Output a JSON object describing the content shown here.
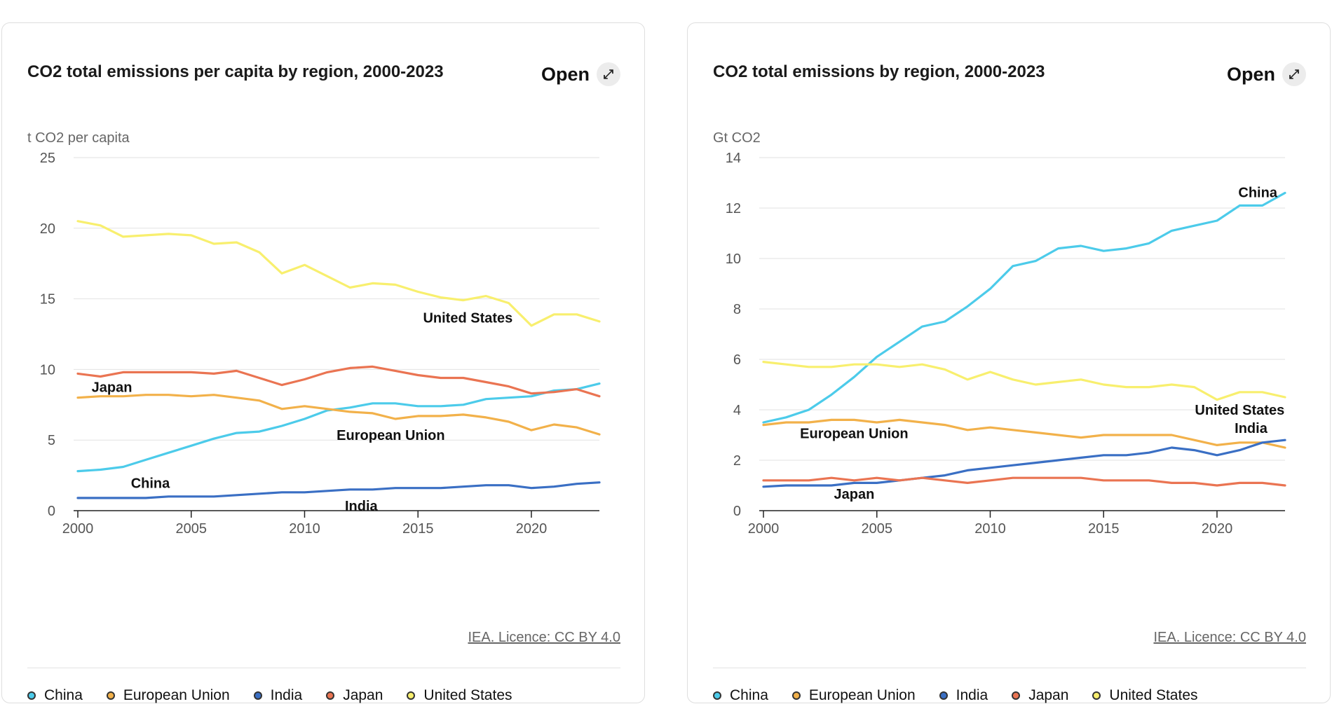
{
  "colors": {
    "China": "#4ccbea",
    "European Union": "#f2b14a",
    "India": "#3a6fc4",
    "Japan": "#ea7452",
    "United States": "#f8ef6e"
  },
  "open_icon": "expand-arrow-icon",
  "chart_data": [
    {
      "type": "line",
      "title": "CO2 total emissions per capita by region, 2000-2023",
      "ylabel": "t CO2 per capita",
      "xlabel": "",
      "open_label": "Open",
      "licence": "IEA. Licence: CC BY 4.0",
      "x": [
        2000,
        2001,
        2002,
        2003,
        2004,
        2005,
        2006,
        2007,
        2008,
        2009,
        2010,
        2011,
        2012,
        2013,
        2014,
        2015,
        2016,
        2017,
        2018,
        2019,
        2020,
        2021,
        2022,
        2023
      ],
      "xlim": [
        2000,
        2023
      ],
      "ylim": [
        0,
        25
      ],
      "yticks": [
        0,
        5,
        10,
        15,
        20,
        25
      ],
      "xticks": [
        2000,
        2005,
        2010,
        2015,
        2020
      ],
      "series": [
        {
          "name": "China",
          "label": "China",
          "values": [
            2.8,
            2.9,
            3.1,
            3.6,
            4.1,
            4.6,
            5.1,
            5.5,
            5.6,
            6.0,
            6.5,
            7.1,
            7.3,
            7.6,
            7.6,
            7.4,
            7.4,
            7.5,
            7.9,
            8.0,
            8.1,
            8.5,
            8.6,
            9.0
          ]
        },
        {
          "name": "European Union",
          "label": "European Union",
          "values": [
            8.0,
            8.1,
            8.1,
            8.2,
            8.2,
            8.1,
            8.2,
            8.0,
            7.8,
            7.2,
            7.4,
            7.2,
            7.0,
            6.9,
            6.5,
            6.7,
            6.7,
            6.8,
            6.6,
            6.3,
            5.7,
            6.1,
            5.9,
            5.4
          ]
        },
        {
          "name": "India",
          "label": "India",
          "values": [
            0.9,
            0.9,
            0.9,
            0.9,
            1.0,
            1.0,
            1.0,
            1.1,
            1.2,
            1.3,
            1.3,
            1.4,
            1.5,
            1.5,
            1.6,
            1.6,
            1.6,
            1.7,
            1.8,
            1.8,
            1.6,
            1.7,
            1.9,
            2.0
          ]
        },
        {
          "name": "Japan",
          "label": "Japan",
          "values": [
            9.7,
            9.5,
            9.8,
            9.8,
            9.8,
            9.8,
            9.7,
            9.9,
            9.4,
            8.9,
            9.3,
            9.8,
            10.1,
            10.2,
            9.9,
            9.6,
            9.4,
            9.4,
            9.1,
            8.8,
            8.3,
            8.4,
            8.6,
            8.1
          ]
        },
        {
          "name": "United States",
          "label": "United States",
          "values": [
            20.5,
            20.2,
            19.4,
            19.5,
            19.6,
            19.5,
            18.9,
            19.0,
            18.3,
            16.8,
            17.4,
            16.6,
            15.8,
            16.1,
            16.0,
            15.5,
            15.1,
            14.9,
            15.2,
            14.7,
            13.1,
            13.9,
            13.9,
            13.4
          ]
        }
      ]
    },
    {
      "type": "line",
      "title": "CO2 total emissions by region, 2000-2023",
      "ylabel": "Gt CO2",
      "xlabel": "",
      "open_label": "Open",
      "licence": "IEA. Licence: CC BY 4.0",
      "x": [
        2000,
        2001,
        2002,
        2003,
        2004,
        2005,
        2006,
        2007,
        2008,
        2009,
        2010,
        2011,
        2012,
        2013,
        2014,
        2015,
        2016,
        2017,
        2018,
        2019,
        2020,
        2021,
        2022,
        2023
      ],
      "xlim": [
        2000,
        2023
      ],
      "ylim": [
        0,
        14
      ],
      "yticks": [
        0,
        2,
        4,
        6,
        8,
        10,
        12,
        14
      ],
      "xticks": [
        2000,
        2005,
        2010,
        2015,
        2020
      ],
      "series": [
        {
          "name": "China",
          "label": "China",
          "values": [
            3.5,
            3.7,
            4.0,
            4.6,
            5.3,
            6.1,
            6.7,
            7.3,
            7.5,
            8.1,
            8.8,
            9.7,
            9.9,
            10.4,
            10.5,
            10.3,
            10.4,
            10.6,
            11.1,
            11.3,
            11.5,
            12.1,
            12.1,
            12.6
          ]
        },
        {
          "name": "European Union",
          "label": "European Union",
          "values": [
            3.4,
            3.5,
            3.5,
            3.6,
            3.6,
            3.5,
            3.6,
            3.5,
            3.4,
            3.2,
            3.3,
            3.2,
            3.1,
            3.0,
            2.9,
            3.0,
            3.0,
            3.0,
            3.0,
            2.8,
            2.6,
            2.7,
            2.7,
            2.5
          ]
        },
        {
          "name": "India",
          "label": "India",
          "values": [
            0.95,
            1.0,
            1.0,
            1.0,
            1.1,
            1.1,
            1.2,
            1.3,
            1.4,
            1.6,
            1.7,
            1.8,
            1.9,
            2.0,
            2.1,
            2.2,
            2.2,
            2.3,
            2.5,
            2.4,
            2.2,
            2.4,
            2.7,
            2.8
          ]
        },
        {
          "name": "Japan",
          "label": "Japan",
          "values": [
            1.2,
            1.2,
            1.2,
            1.3,
            1.2,
            1.3,
            1.2,
            1.3,
            1.2,
            1.1,
            1.2,
            1.3,
            1.3,
            1.3,
            1.3,
            1.2,
            1.2,
            1.2,
            1.1,
            1.1,
            1.0,
            1.1,
            1.1,
            1.0
          ]
        },
        {
          "name": "United States",
          "label": "United States",
          "values": [
            5.9,
            5.8,
            5.7,
            5.7,
            5.8,
            5.8,
            5.7,
            5.8,
            5.6,
            5.2,
            5.5,
            5.2,
            5.0,
            5.1,
            5.2,
            5.0,
            4.9,
            4.9,
            5.0,
            4.9,
            4.4,
            4.7,
            4.7,
            4.5
          ]
        }
      ]
    }
  ],
  "legend": [
    "China",
    "European Union",
    "India",
    "Japan",
    "United States"
  ]
}
